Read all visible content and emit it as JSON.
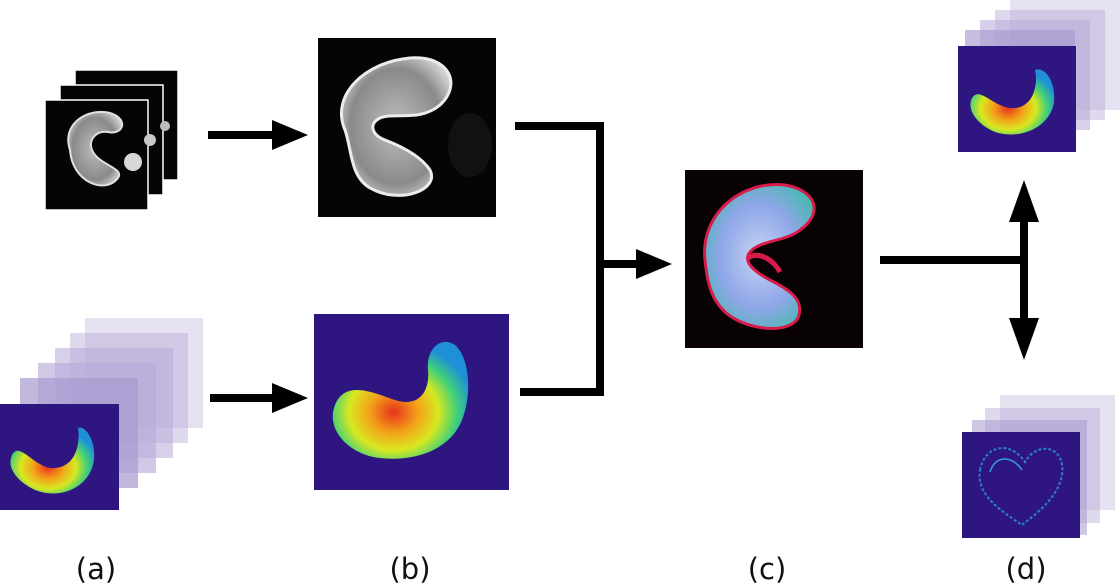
{
  "labels": {
    "a": "(a)",
    "b": "(b)",
    "c": "(c)",
    "d": "(d)"
  },
  "colors": {
    "arrow": "#000000",
    "mri_background": "#050505",
    "heatmap_background": "#2e1580",
    "overlay_background": "#080204",
    "ghost_layer": "#b8aad8"
  }
}
